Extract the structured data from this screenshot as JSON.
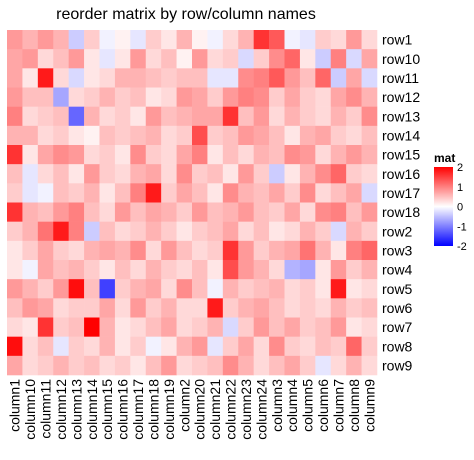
{
  "chart_data": {
    "type": "heatmap",
    "title": "reorder matrix by row/column names",
    "rows": [
      "row1",
      "row10",
      "row11",
      "row12",
      "row13",
      "row14",
      "row15",
      "row16",
      "row17",
      "row18",
      "row2",
      "row3",
      "row4",
      "row5",
      "row6",
      "row7",
      "row8",
      "row9"
    ],
    "columns": [
      "column1",
      "column10",
      "column11",
      "column12",
      "column13",
      "column14",
      "column15",
      "column16",
      "column17",
      "column18",
      "column19",
      "column2",
      "column20",
      "column21",
      "column22",
      "column23",
      "column24",
      "column3",
      "column4",
      "column5",
      "column6",
      "column7",
      "column8",
      "column9"
    ],
    "values": [
      [
        0.8,
        0.6,
        0.8,
        0.6,
        -0.4,
        0.4,
        -0.1,
        0.1,
        -0.2,
        0.4,
        0.2,
        0.6,
        0.1,
        -0.1,
        0.3,
        0.6,
        1.6,
        1.3,
        -0.1,
        -0.2,
        0.4,
        0.3,
        0.8,
        0.3
      ],
      [
        0.7,
        0.8,
        0.3,
        0.5,
        0.8,
        0.2,
        -0.2,
        0.2,
        0.8,
        0.3,
        0.5,
        0.1,
        0.8,
        0.3,
        0.4,
        -0.3,
        0.4,
        0.9,
        1.2,
        0.2,
        -0.4,
        1.0,
        -0.3,
        0.7
      ],
      [
        0.7,
        0.2,
        1.8,
        0.3,
        -0.3,
        0.2,
        0.3,
        0.6,
        0.6,
        0.5,
        0.4,
        0.5,
        0.5,
        -0.2,
        -0.2,
        0.9,
        1.0,
        1.3,
        0.8,
        0.5,
        1.2,
        -0.4,
        0.7,
        -0.3
      ],
      [
        0.8,
        0.5,
        0.5,
        -0.7,
        0.3,
        0.4,
        0.6,
        0.4,
        0.5,
        0.2,
        0.3,
        0.8,
        0.7,
        0.4,
        0.8,
        1.0,
        0.9,
        0.4,
        0.7,
        0.4,
        0.3,
        0.7,
        0.9,
        0.6
      ],
      [
        1.0,
        0.3,
        0.4,
        0.5,
        -1.2,
        0.6,
        0.3,
        0.4,
        0.2,
        0.8,
        0.5,
        0.6,
        0.7,
        0.7,
        1.6,
        0.5,
        0.8,
        0.3,
        0.6,
        0.4,
        0.3,
        0.6,
        0.4,
        0.9
      ],
      [
        0.6,
        0.6,
        0.3,
        0.4,
        0.2,
        0.1,
        0.5,
        0.4,
        0.5,
        0.6,
        0.3,
        0.4,
        1.4,
        0.4,
        0.5,
        0.8,
        0.7,
        0.5,
        0.2,
        0.6,
        0.7,
        0.4,
        0.3,
        0.5
      ],
      [
        1.6,
        0.2,
        0.7,
        0.9,
        0.8,
        0.3,
        0.4,
        0.2,
        0.9,
        0.4,
        0.3,
        0.7,
        1.0,
        0.2,
        0.5,
        0.3,
        0.6,
        0.5,
        0.9,
        0.8,
        0.3,
        0.6,
        0.8,
        0.6
      ],
      [
        0.5,
        -0.2,
        0.3,
        0.5,
        0.2,
        0.8,
        0.4,
        0.3,
        0.6,
        0.7,
        0.3,
        0.9,
        0.4,
        0.5,
        0.2,
        0.8,
        0.4,
        -0.4,
        0.2,
        0.6,
        0.9,
        1.2,
        0.4,
        0.3
      ],
      [
        0.4,
        -0.2,
        -0.1,
        0.5,
        0.4,
        0.6,
        0.2,
        0.5,
        1.0,
        1.8,
        0.4,
        0.7,
        0.5,
        0.2,
        0.9,
        0.6,
        0.5,
        0.7,
        0.4,
        0.9,
        0.3,
        0.5,
        0.7,
        -0.3
      ],
      [
        1.6,
        0.6,
        0.5,
        0.8,
        1.0,
        0.5,
        0.3,
        0.8,
        0.5,
        0.7,
        0.6,
        0.4,
        0.8,
        0.5,
        0.6,
        0.8,
        0.5,
        0.4,
        0.7,
        0.3,
        0.9,
        1.0,
        0.5,
        0.8
      ],
      [
        0.4,
        0.6,
        1.1,
        1.8,
        1.0,
        -0.4,
        0.5,
        0.3,
        0.4,
        0.6,
        0.4,
        0.2,
        0.4,
        0.5,
        0.7,
        0.3,
        0.5,
        0.2,
        0.3,
        0.6,
        0.4,
        -0.3,
        0.6,
        0.4
      ],
      [
        0.2,
        0.4,
        0.7,
        0.4,
        0.3,
        0.6,
        0.7,
        0.6,
        0.9,
        0.3,
        0.8,
        0.5,
        0.3,
        0.4,
        1.6,
        0.8,
        0.4,
        0.6,
        0.7,
        1.1,
        0.6,
        0.2,
        1.0,
        1.2
      ],
      [
        0.2,
        -0.1,
        0.7,
        0.5,
        0.6,
        0.4,
        0.2,
        0.5,
        0.3,
        0.6,
        0.4,
        0.3,
        0.5,
        0.2,
        1.4,
        0.8,
        0.6,
        0.3,
        -0.6,
        -0.7,
        0.2,
        0.8,
        0.4,
        0.6
      ],
      [
        0.8,
        0.6,
        0.4,
        0.8,
        1.9,
        0.5,
        -1.5,
        0.4,
        0.6,
        0.7,
        0.3,
        0.9,
        0.5,
        -0.1,
        0.6,
        0.4,
        0.5,
        0.6,
        0.3,
        0.4,
        0.2,
        1.8,
        0.2,
        0.3
      ],
      [
        0.5,
        0.8,
        0.7,
        0.3,
        0.4,
        0.4,
        0.7,
        0.3,
        0.8,
        0.4,
        0.6,
        0.3,
        0.3,
        1.8,
        0.4,
        0.6,
        0.7,
        0.5,
        0.3,
        0.4,
        0.3,
        0.6,
        0.4,
        0.5
      ],
      [
        0.3,
        0.2,
        1.6,
        0.4,
        0.5,
        2.0,
        0.6,
        0.2,
        0.3,
        0.5,
        0.7,
        0.3,
        0.4,
        0.6,
        -0.3,
        0.4,
        0.8,
        0.5,
        0.7,
        0.4,
        0.5,
        0.8,
        0.2,
        0.3
      ],
      [
        1.9,
        0.3,
        0.5,
        -0.2,
        0.4,
        0.3,
        0.6,
        0.2,
        0.4,
        -0.1,
        0.2,
        0.6,
        0.8,
        -0.2,
        0.4,
        0.7,
        0.3,
        0.9,
        0.4,
        0.3,
        0.5,
        0.4,
        1.2,
        0.4
      ],
      [
        0.7,
        0.3,
        0.4,
        0.6,
        0.4,
        0.5,
        0.3,
        0.4,
        0.2,
        0.5,
        0.8,
        0.3,
        0.4,
        0.5,
        0.9,
        0.6,
        0.3,
        0.5,
        0.7,
        0.4,
        -0.2,
        0.3,
        0.6,
        0.3
      ]
    ],
    "legend": {
      "title": "mat",
      "ticks": [
        2,
        1,
        0,
        -1,
        -2
      ],
      "low_color": "#0000ff",
      "mid_color": "#ffffff",
      "high_color": "#ff0000",
      "range": [
        -2,
        2
      ]
    }
  }
}
